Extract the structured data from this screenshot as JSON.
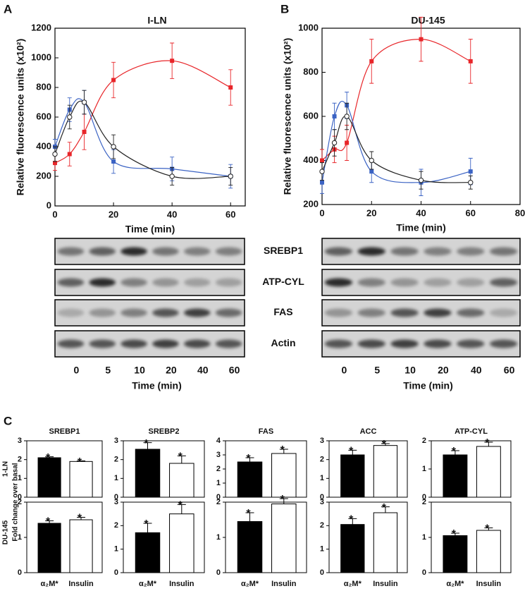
{
  "panels": [
    "A",
    "B",
    "C"
  ],
  "chart_data": [
    {
      "type": "line",
      "title": "I-LN",
      "ylabel": "Relative fluorescence units (x10²)",
      "xlabel": "Time (min)",
      "x": [
        0,
        5,
        10,
        20,
        40,
        60
      ],
      "xlim": [
        0,
        65
      ],
      "xticks": [
        0,
        20,
        40,
        60
      ],
      "ylim": [
        0,
        1200
      ],
      "yticks": [
        0,
        200,
        400,
        600,
        800,
        1000,
        1200
      ],
      "series": [
        {
          "color": "#e8262a",
          "marker": "square",
          "values": [
            290,
            350,
            500,
            850,
            980,
            800
          ],
          "errors": [
            50,
            80,
            120,
            120,
            120,
            120
          ]
        },
        {
          "color": "#3b63c4",
          "marker": "square",
          "values": [
            400,
            650,
            700,
            300,
            250,
            200
          ],
          "errors": [
            50,
            80,
            80,
            80,
            80,
            80
          ]
        },
        {
          "color": "#222222",
          "marker": "circle-open",
          "values": [
            350,
            600,
            700,
            400,
            200,
            200
          ],
          "errors": [
            50,
            80,
            80,
            80,
            60,
            60
          ]
        }
      ]
    },
    {
      "type": "line",
      "title": "DU-145",
      "ylabel": "Relative fluorescence units (x10²)",
      "xlabel": "Time (min)",
      "x": [
        0,
        5,
        10,
        20,
        40,
        60
      ],
      "xlim": [
        0,
        80
      ],
      "xticks": [
        0,
        20,
        40,
        60,
        80
      ],
      "ylim": [
        200,
        1000
      ],
      "yticks": [
        200,
        400,
        600,
        800,
        1000
      ],
      "series": [
        {
          "color": "#e8262a",
          "marker": "square",
          "values": [
            400,
            450,
            480,
            850,
            950,
            850
          ],
          "errors": [
            50,
            60,
            80,
            100,
            100,
            100
          ]
        },
        {
          "color": "#3b63c4",
          "marker": "square",
          "values": [
            300,
            600,
            650,
            350,
            300,
            350
          ],
          "errors": [
            50,
            60,
            60,
            50,
            60,
            60
          ]
        },
        {
          "color": "#222222",
          "marker": "circle-open",
          "values": [
            350,
            480,
            600,
            400,
            310,
            300
          ],
          "errors": [
            40,
            60,
            60,
            40,
            40,
            30
          ]
        }
      ]
    },
    {
      "type": "bar",
      "title": "SREBP1",
      "ylim": [
        0,
        3
      ],
      "yticks": [
        0,
        1,
        2,
        3
      ],
      "colors": [
        "#000000",
        "#ffffff"
      ],
      "values": [
        2.1,
        1.9
      ],
      "errors": [
        0.05,
        0.03
      ],
      "markers": [
        "*",
        "*"
      ]
    },
    {
      "type": "bar",
      "title": "SREBP2",
      "ylim": [
        0,
        3
      ],
      "yticks": [
        0,
        1,
        2,
        3
      ],
      "colors": [
        "#000000",
        "#ffffff"
      ],
      "values": [
        2.55,
        1.8
      ],
      "errors": [
        0.35,
        0.4
      ],
      "markers": [
        "*",
        "*"
      ]
    },
    {
      "type": "bar",
      "title": "FAS",
      "ylim": [
        0,
        4
      ],
      "yticks": [
        0,
        1,
        2,
        3,
        4
      ],
      "colors": [
        "#000000",
        "#ffffff"
      ],
      "values": [
        2.5,
        3.1
      ],
      "errors": [
        0.3,
        0.3
      ],
      "markers": [
        "*",
        "*"
      ]
    },
    {
      "type": "bar",
      "title": "ACC",
      "ylim": [
        0,
        3
      ],
      "yticks": [
        0,
        1,
        2,
        3
      ],
      "colors": [
        "#000000",
        "#ffffff"
      ],
      "values": [
        2.25,
        2.75
      ],
      "errors": [
        0.25,
        0.1
      ],
      "markers": [
        "*",
        "*"
      ]
    },
    {
      "type": "bar",
      "title": "ATP-CYL",
      "ylim": [
        0,
        2
      ],
      "yticks": [
        0,
        1,
        2
      ],
      "colors": [
        "#000000",
        "#ffffff"
      ],
      "values": [
        1.5,
        1.8
      ],
      "errors": [
        0.15,
        0.15
      ],
      "markers": [
        "*",
        "*"
      ]
    },
    {
      "type": "bar",
      "categories": [
        "α₂M*",
        "Insulin"
      ],
      "ylim": [
        0,
        2
      ],
      "yticks": [
        0,
        1,
        2
      ],
      "colors": [
        "#000000",
        "#ffffff"
      ],
      "values": [
        1.4,
        1.5
      ],
      "errors": [
        0.07,
        0.07
      ],
      "markers": [
        "*",
        "*"
      ]
    },
    {
      "type": "bar",
      "categories": [
        "α₂M*",
        "Insulin"
      ],
      "ylim": [
        0,
        3
      ],
      "yticks": [
        0,
        1,
        2,
        3
      ],
      "colors": [
        "#000000",
        "#ffffff"
      ],
      "values": [
        1.7,
        2.5
      ],
      "errors": [
        0.4,
        0.4
      ],
      "markers": [
        "*",
        "*"
      ]
    },
    {
      "type": "bar",
      "categories": [
        "α₂M*",
        "Insulin"
      ],
      "ylim": [
        0,
        2
      ],
      "yticks": [
        0,
        1,
        2
      ],
      "colors": [
        "#000000",
        "#ffffff"
      ],
      "values": [
        1.45,
        1.95
      ],
      "errors": [
        0.25,
        0.15
      ],
      "markers": [
        "*",
        "*"
      ]
    },
    {
      "type": "bar",
      "categories": [
        "α₂M*",
        "Insulin"
      ],
      "ylim": [
        0,
        3
      ],
      "yticks": [
        0,
        1,
        2,
        3
      ],
      "colors": [
        "#000000",
        "#ffffff"
      ],
      "values": [
        2.05,
        2.55
      ],
      "errors": [
        0.25,
        0.25
      ],
      "markers": [
        "*",
        "*"
      ]
    },
    {
      "type": "bar",
      "categories": [
        "α₂M*",
        "Insulin"
      ],
      "ylim": [
        0,
        2
      ],
      "yticks": [
        0,
        1,
        2
      ],
      "colors": [
        "#000000",
        "#ffffff"
      ],
      "values": [
        1.05,
        1.2
      ],
      "errors": [
        0.07,
        0.07
      ],
      "markers": [
        "*",
        "*"
      ]
    }
  ],
  "blots": {
    "proteins": [
      "SREBP1",
      "ATP-CYL",
      "FAS",
      "Actin"
    ],
    "left": {
      "lanes": [
        0,
        5,
        10,
        20,
        40,
        60
      ],
      "xlabel": "Time (min)"
    },
    "right": {
      "lanes": [
        0,
        5,
        10,
        20,
        40,
        60
      ],
      "xlabel": "Time (min)"
    }
  },
  "figure_c": {
    "ylabel": "Fold change over basal",
    "row_labels": [
      "1-LN",
      "DU-145"
    ]
  }
}
